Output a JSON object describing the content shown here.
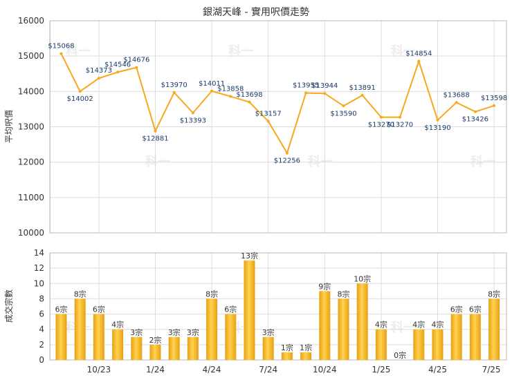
{
  "title": "銀湖天峰 - 實用呎價走勢",
  "colors": {
    "line": "#f7a81b",
    "bar_light": "#ffd24d",
    "bar_dark": "#e8a013"
  },
  "watermark_text": "科一",
  "chart_data": [
    {
      "type": "line",
      "ylabel": "平均呎價",
      "ylim": [
        10000,
        16000
      ],
      "yticks": [
        "10000",
        "11000",
        "12000",
        "13000",
        "14000",
        "15000",
        "16000"
      ],
      "grid": true,
      "values": [
        15068,
        14002,
        14373,
        14546,
        14676,
        12881,
        13970,
        13393,
        14011,
        13858,
        13698,
        13157,
        12256,
        13955,
        13944,
        13590,
        13891,
        13270,
        13270,
        14854,
        13190,
        13688,
        13426,
        13598
      ],
      "labels": [
        "$15068",
        "$14002",
        "$14373",
        "$14546",
        "$14676",
        "$12881",
        "$13970",
        "$13393",
        "$14011",
        "$13858",
        "$13698",
        "$13157",
        "$12256",
        "$13955",
        "$13944",
        "$13590",
        "$13891",
        "$13270",
        "$13270",
        "$14854",
        "$13190",
        "$13688",
        "$13426",
        "$13598"
      ]
    },
    {
      "type": "bar",
      "ylabel": "成交宗數",
      "ylim": [
        0,
        14
      ],
      "yticks": [
        "0",
        "2",
        "4",
        "6",
        "8",
        "10",
        "12",
        "14"
      ],
      "grid": true,
      "values": [
        6,
        8,
        6,
        4,
        3,
        2,
        3,
        3,
        8,
        6,
        13,
        3,
        1,
        1,
        9,
        8,
        10,
        4,
        0,
        4,
        4,
        6,
        6,
        8
      ],
      "labels": [
        "6宗",
        "8宗",
        "6宗",
        "4宗",
        "3宗",
        "2宗",
        "3宗",
        "3宗",
        "8宗",
        "6宗",
        "13宗",
        "3宗",
        "1宗",
        "1宗",
        "9宗",
        "8宗",
        "10宗",
        "4宗",
        "0宗",
        "4宗",
        "4宗",
        "6宗",
        "6宗",
        "8宗"
      ],
      "xticks": [
        "10/23",
        "1/24",
        "4/24",
        "7/24",
        "10/24",
        "1/25",
        "4/25",
        "7/25"
      ]
    }
  ]
}
